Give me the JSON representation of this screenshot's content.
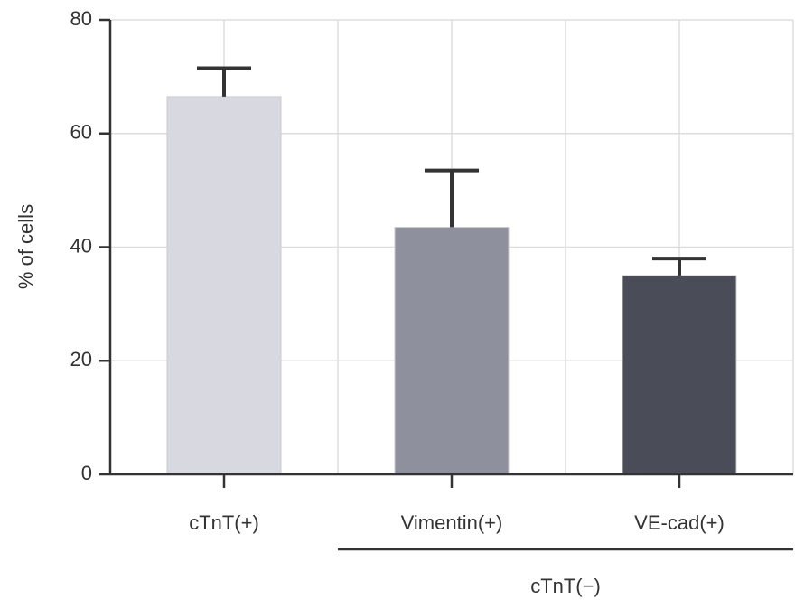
{
  "chart_data": {
    "type": "bar",
    "y_label": "% of cells",
    "categories": [
      "cTnT(+)",
      "Vimentin(+)",
      "VE-cad(+)"
    ],
    "values": [
      66.5,
      43.5,
      35
    ],
    "errors": [
      5,
      10,
      3
    ],
    "colors": [
      "#d8d8e0",
      "#8e909e",
      "#4a4c58"
    ],
    "group_label": "cTnT(−)",
    "ylim": [
      0,
      80
    ],
    "yticks": [
      0,
      20,
      40,
      60,
      80
    ],
    "grid": true
  }
}
